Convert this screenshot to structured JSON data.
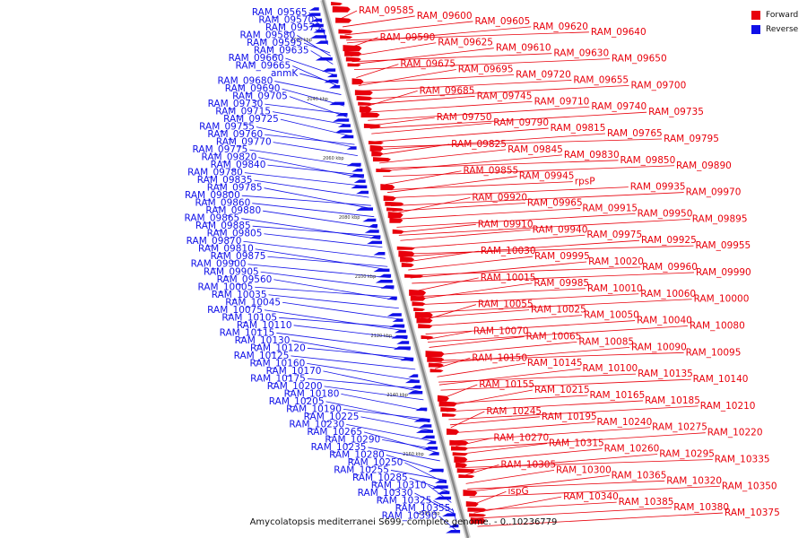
{
  "caption": "Amycolatopsis mediterranei S699, complete genome. - 0..10236779",
  "legend": [
    {
      "label": "Forward",
      "color": "#e8000b"
    },
    {
      "label": "Reverse",
      "color": "#1010e8"
    }
  ],
  "colors": {
    "forward": "#e8000b",
    "reverse": "#1010e8",
    "axis": "#888888"
  },
  "ticks": [
    "2020 kbp",
    "2040 kbp",
    "2060 kbp",
    "2080 kbp",
    "2100 kbp",
    "2120 kbp",
    "2140 kbp",
    "2160 kbp",
    "2180 kbp"
  ],
  "reverse_labels": [
    "RAM_09565",
    "RAM_09570",
    "RAM_09575",
    "RAM_09580",
    "RAM_09595",
    "RAM_09635",
    "RAM_09660",
    "RAM_09665",
    "anmK",
    "RAM_09680",
    "RAM_09690",
    "RAM_09705",
    "RAM_09730",
    "RAM_09715",
    "RAM_09725",
    "RAM_09755",
    "RAM_09760",
    "RAM_09770",
    "RAM_09775",
    "RAM_09820",
    "RAM_09840",
    "RAM_09780",
    "RAM_09835",
    "RAM_09785",
    "RAM_09800",
    "RAM_09860",
    "RAM_09880",
    "RAM_09865",
    "RAM_09885",
    "RAM_09805",
    "RAM_09870",
    "RAM_09810",
    "RAM_09875",
    "RAM_09900",
    "RAM_09905",
    "RAM_09560",
    "RAM_10005",
    "RAM_10035",
    "RAM_10045",
    "RAM_10075",
    "RAM_10105",
    "RAM_10110",
    "RAM_10115",
    "RAM_10130",
    "RAM_10120",
    "RAM_10125",
    "RAM_10160",
    "RAM_10170",
    "RAM_10175",
    "RAM_10200",
    "RAM_10180",
    "RAM_10205",
    "RAM_10190",
    "RAM_10225",
    "RAM_10230",
    "RAM_10265",
    "RAM_10290",
    "RAM_10235",
    "RAM_10280",
    "RAM_10250",
    "RAM_10255",
    "RAM_10285",
    "RAM_10310",
    "RAM_10330",
    "RAM_10325",
    "RAM_10355",
    "RAM_10390"
  ],
  "forward_labels": [
    "RAM_09585",
    "RAM_09600",
    "RAM_09605",
    "RAM_09620",
    "RAM_09640",
    "RAM_09590",
    "RAM_09625",
    "RAM_09610",
    "RAM_09630",
    "RAM_09650",
    "RAM_09675",
    "RAM_09695",
    "RAM_09720",
    "RAM_09655",
    "RAM_09700",
    "RAM_09685",
    "RAM_09745",
    "RAM_09710",
    "RAM_09740",
    "RAM_09735",
    "RAM_09750",
    "RAM_09790",
    "RAM_09815",
    "RAM_09765",
    "RAM_09795",
    "RAM_09825",
    "RAM_09845",
    "RAM_09830",
    "RAM_09850",
    "RAM_09890",
    "RAM_09855",
    "RAM_09945",
    "rpsP",
    "RAM_09935",
    "RAM_09970",
    "RAM_09920",
    "RAM_09965",
    "RAM_09915",
    "RAM_09950",
    "RAM_09895",
    "RAM_09910",
    "RAM_09940",
    "RAM_09975",
    "RAM_09925",
    "RAM_09955",
    "RAM_10030",
    "RAM_09995",
    "RAM_10020",
    "RAM_09960",
    "RAM_09990",
    "RAM_10015",
    "RAM_09985",
    "RAM_10010",
    "RAM_10060",
    "RAM_10000",
    "RAM_10055",
    "RAM_10025",
    "RAM_10050",
    "RAM_10040",
    "RAM_10080",
    "RAM_10070",
    "RAM_10065",
    "RAM_10085",
    "RAM_10090",
    "RAM_10095",
    "RAM_10150",
    "RAM_10145",
    "RAM_10100",
    "RAM_10135",
    "RAM_10140",
    "RAM_10155",
    "RAM_10215",
    "RAM_10165",
    "RAM_10185",
    "RAM_10210",
    "RAM_10245",
    "RAM_10195",
    "RAM_10240",
    "RAM_10275",
    "RAM_10220",
    "RAM_10270",
    "RAM_10315",
    "RAM_10260",
    "RAM_10295",
    "RAM_10335",
    "RAM_10305",
    "RAM_10300",
    "RAM_10365",
    "RAM_10320",
    "RAM_10350",
    "ispG",
    "RAM_10340",
    "RAM_10385",
    "RAM_10380",
    "RAM_10375"
  ]
}
